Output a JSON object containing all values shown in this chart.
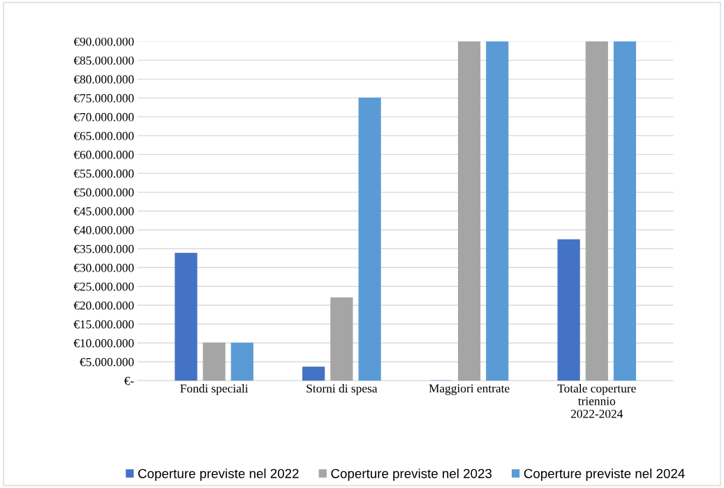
{
  "chart_data": {
    "type": "bar",
    "categories": [
      "Fondi speciali",
      "Storni di spesa",
      "Maggiori entrate",
      "Totale coperture\ntriennio\n2022-2024"
    ],
    "series": [
      {
        "name": "Coperture previste nel 2022",
        "color": "#4472c4",
        "values": [
          33800000,
          3600000,
          0,
          37400000
        ]
      },
      {
        "name": "Coperture previste nel 2023",
        "color": "#a5a5a5",
        "values": [
          10000000,
          22000000,
          90000000,
          90000000
        ]
      },
      {
        "name": "Coperture previste nel 2024",
        "color": "#5b9bd5",
        "values": [
          10000000,
          75000000,
          90000000,
          90000000
        ]
      }
    ],
    "ylim": [
      0,
      90000000
    ],
    "yticks": [
      {
        "value": 0,
        "label": "€-"
      },
      {
        "value": 5000000,
        "label": "€5.000.000"
      },
      {
        "value": 10000000,
        "label": "€10.000.000"
      },
      {
        "value": 15000000,
        "label": "€15.000.000"
      },
      {
        "value": 20000000,
        "label": "€20.000.000"
      },
      {
        "value": 25000000,
        "label": "€25.000.000"
      },
      {
        "value": 30000000,
        "label": "€30.000.000"
      },
      {
        "value": 35000000,
        "label": "€35.000.000"
      },
      {
        "value": 40000000,
        "label": "€40.000.000"
      },
      {
        "value": 45000000,
        "label": "€45.000.000"
      },
      {
        "value": 50000000,
        "label": "€50.000.000"
      },
      {
        "value": 55000000,
        "label": "€55.000.000"
      },
      {
        "value": 60000000,
        "label": "€60.000.000"
      },
      {
        "value": 65000000,
        "label": "€65.000.000"
      },
      {
        "value": 70000000,
        "label": "€70.000.000"
      },
      {
        "value": 75000000,
        "label": "€75.000.000"
      },
      {
        "value": 80000000,
        "label": "€80.000.000"
      },
      {
        "value": 85000000,
        "label": "€85.000.000"
      },
      {
        "value": 90000000,
        "label": "€90.000.000"
      }
    ],
    "grid": "y",
    "legend": "bottom"
  }
}
